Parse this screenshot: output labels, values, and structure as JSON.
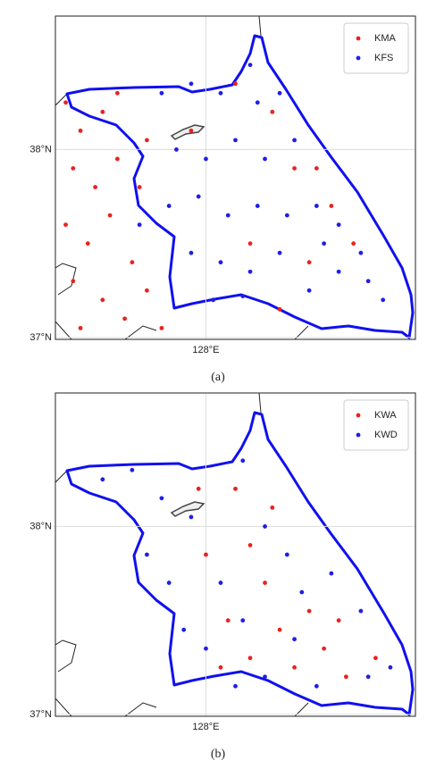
{
  "chart_data": [
    {
      "type": "scatter",
      "caption": "(a)",
      "xlim": [
        126.98,
        129.42
      ],
      "ylim": [
        36.99,
        38.71
      ],
      "xticks": [
        {
          "value": 128,
          "label": "128°E"
        }
      ],
      "yticks": [
        {
          "value": 37,
          "label": "37°N"
        },
        {
          "value": 38,
          "label": "38°N"
        }
      ],
      "grid": true,
      "legend": "upper right",
      "series": [
        {
          "name": "KMA",
          "color": "#e8231f",
          "x": [
            127.05,
            127.15,
            127.3,
            127.1,
            127.25,
            127.4,
            127.05,
            127.2,
            127.35,
            127.5,
            127.1,
            127.3,
            127.45,
            127.6,
            127.15,
            127.55,
            127.7,
            127.4,
            127.6,
            128.2,
            128.45,
            128.6,
            128.85,
            128.3,
            128.7,
            129.0,
            128.05,
            128.5,
            127.9,
            128.75
          ],
          "values": [
            38.25,
            38.1,
            38.2,
            37.9,
            37.8,
            37.95,
            37.6,
            37.5,
            37.65,
            37.4,
            37.3,
            37.2,
            37.1,
            37.25,
            37.05,
            37.8,
            37.05,
            38.3,
            38.05,
            38.35,
            38.2,
            37.9,
            37.7,
            37.5,
            37.4,
            37.5,
            37.2,
            37.15,
            38.1,
            37.9
          ]
        },
        {
          "name": "KFS",
          "color": "#1f1fe8",
          "x": [
            127.7,
            127.9,
            128.1,
            128.3,
            128.35,
            128.5,
            127.8,
            128.0,
            128.2,
            128.4,
            128.6,
            127.75,
            127.95,
            128.15,
            128.35,
            128.55,
            128.75,
            128.9,
            127.9,
            128.1,
            128.3,
            128.5,
            128.7,
            128.9,
            129.1,
            129.2,
            128.05,
            128.25,
            127.55,
            128.8,
            129.05
          ],
          "values": [
            38.3,
            38.35,
            38.3,
            38.45,
            38.25,
            38.3,
            38.0,
            37.95,
            38.05,
            37.95,
            38.05,
            37.7,
            37.75,
            37.65,
            37.7,
            37.65,
            37.7,
            37.6,
            37.45,
            37.4,
            37.35,
            37.45,
            37.25,
            37.35,
            37.3,
            37.2,
            37.2,
            37.22,
            37.6,
            37.5,
            37.45
          ]
        }
      ]
    },
    {
      "type": "scatter",
      "caption": "(b)",
      "xlim": [
        126.98,
        129.42
      ],
      "ylim": [
        36.99,
        38.71
      ],
      "xticks": [
        {
          "value": 128,
          "label": "128°E"
        }
      ],
      "yticks": [
        {
          "value": 37,
          "label": "37°N"
        },
        {
          "value": 38,
          "label": "38°N"
        }
      ],
      "grid": true,
      "legend": "upper right",
      "series": [
        {
          "name": "KWA",
          "color": "#e8231f",
          "x": [
            127.95,
            128.2,
            128.0,
            128.3,
            128.4,
            128.15,
            128.5,
            128.7,
            128.9,
            128.3,
            128.6,
            128.95,
            128.1,
            128.45,
            128.8,
            129.15
          ],
          "values": [
            38.2,
            38.2,
            37.85,
            37.9,
            37.7,
            37.5,
            37.45,
            37.55,
            37.5,
            37.3,
            37.25,
            37.2,
            37.25,
            38.1,
            37.35,
            37.3
          ]
        },
        {
          "name": "KWD",
          "color": "#1f1fe8",
          "x": [
            127.3,
            127.5,
            127.7,
            127.9,
            128.25,
            128.4,
            127.6,
            127.75,
            128.1,
            128.55,
            128.85,
            127.85,
            128.25,
            128.6,
            129.05,
            128.0,
            128.4,
            128.75,
            129.1,
            128.2,
            129.25,
            128.65
          ],
          "values": [
            38.25,
            38.3,
            38.15,
            38.05,
            38.35,
            38.0,
            37.85,
            37.7,
            37.7,
            37.85,
            37.75,
            37.45,
            37.5,
            37.4,
            37.55,
            37.35,
            37.2,
            37.15,
            37.2,
            37.15,
            37.25,
            37.65
          ]
        }
      ]
    }
  ]
}
